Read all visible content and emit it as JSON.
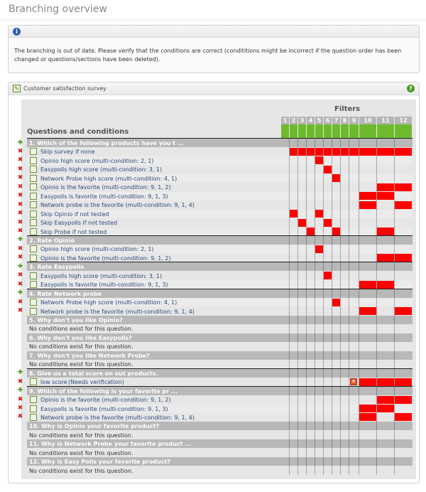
{
  "page": {
    "title": "Branching overview"
  },
  "notice": {
    "icon": "info-icon",
    "text": "The branching is out of date. Please verify that the conditions are correct (condititions might be incorrect if the question order has been changed or questions/sections have been deleted)."
  },
  "survey": {
    "title": "Customer satisfaction survey",
    "icon": "survey-icon",
    "help_icon": "help-icon",
    "filters_label": "Filters",
    "questions_label": "Questions and conditions",
    "filters": [
      "1",
      "2",
      "3",
      "4",
      "5",
      "6",
      "7",
      "8",
      "9",
      "10",
      "11",
      "12"
    ],
    "rows": [
      {
        "type": "q",
        "label": "1. Which of the following products have you t ...",
        "mark": "add"
      },
      {
        "type": "c",
        "label": "Skip survey if none",
        "mark": "del",
        "cells": [
          2,
          3,
          4,
          5,
          6,
          7,
          8,
          9,
          10,
          11,
          12
        ]
      },
      {
        "type": "c",
        "label": "Opinio high score (multi-condition: 2, 1)",
        "mark": "del",
        "cells": [
          5
        ]
      },
      {
        "type": "c",
        "label": "Easypolls high score (multi-condition: 3, 1)",
        "mark": "del",
        "cells": [
          6
        ]
      },
      {
        "type": "c",
        "label": "Network Probe high score (multi-condition: 4, 1)",
        "mark": "del",
        "cells": [
          7
        ]
      },
      {
        "type": "c",
        "label": "Opinio is the favorite (multi-condition: 9, 1, 2)",
        "mark": "del",
        "cells": [
          11,
          12
        ]
      },
      {
        "type": "c",
        "label": "Easypolls is favorite (multi-condition: 9, 1, 3)",
        "mark": "del",
        "cells": [
          10,
          11
        ]
      },
      {
        "type": "c",
        "label": "Network probe is the favorite (multi-condition: 9, 1, 4)",
        "mark": "del",
        "cells": [
          10,
          12
        ]
      },
      {
        "type": "c",
        "label": "Skip Opinio if not tested",
        "mark": "del",
        "cells": [
          2,
          5
        ]
      },
      {
        "type": "c",
        "label": "Skip Easypolls if not tested",
        "mark": "del",
        "cells": [
          3,
          6
        ]
      },
      {
        "type": "c",
        "label": "Skip Probe if not tested",
        "mark": "del",
        "cells": [
          4,
          7,
          11
        ]
      },
      {
        "type": "q",
        "label": "2. Rate Opinio",
        "mark": "add"
      },
      {
        "type": "c",
        "label": "Opinio high score (multi-condition: 2, 1)",
        "mark": "del",
        "cells": [
          5
        ]
      },
      {
        "type": "c",
        "label": "Opinio is the favorite (multi-condition: 9, 1, 2)",
        "mark": "del",
        "cells": [
          11,
          12
        ]
      },
      {
        "type": "q",
        "label": "3. Rate Easypolls",
        "mark": "add"
      },
      {
        "type": "c",
        "label": "Easypolls high score (multi-condition: 3, 1)",
        "mark": "del",
        "cells": [
          6
        ]
      },
      {
        "type": "c",
        "label": "Easypolls is favorite (multi-condition: 9, 1, 3)",
        "mark": "del",
        "cells": [
          10,
          11
        ]
      },
      {
        "type": "q",
        "label": "4. Rate Network probe",
        "mark": "add"
      },
      {
        "type": "c",
        "label": "Network Probe high score (multi-condition: 4, 1)",
        "mark": "del",
        "cells": [
          7
        ]
      },
      {
        "type": "c",
        "label": "Network probe is the favorite (multi-condition: 9, 1, 4)",
        "mark": "del",
        "cells": [
          10,
          12
        ]
      },
      {
        "type": "q",
        "label": "5. Why don't you like Opinio?"
      },
      {
        "type": "n",
        "label": "No conditions exist for this question."
      },
      {
        "type": "q",
        "label": "6. Why don't you like Easypolls?"
      },
      {
        "type": "n",
        "label": "No conditions exist for this question."
      },
      {
        "type": "q",
        "label": "7. Why don't you like Network Probe?"
      },
      {
        "type": "n",
        "label": "No conditions exist for this question."
      },
      {
        "type": "q",
        "label": "8. Give us a total score on out products.",
        "mark": "add"
      },
      {
        "type": "c",
        "label": "low score",
        "warn": "(Needs verification)",
        "mark": "del",
        "cells": [
          10,
          11,
          12
        ],
        "error_cell": 9
      },
      {
        "type": "q",
        "label": "9. Which of the following is your favorite pr ...",
        "mark": "add"
      },
      {
        "type": "c",
        "label": "Opinio is the favorite (multi-condition: 9, 1, 2)",
        "mark": "del",
        "cells": [
          11,
          12
        ]
      },
      {
        "type": "c",
        "label": "Easypolls is favorite (multi-condition: 9, 1, 3)",
        "mark": "del",
        "cells": [
          10,
          11
        ]
      },
      {
        "type": "c",
        "label": "Network probe is the favorite (multi-condition: 9, 1, 4)",
        "mark": "del",
        "cells": [
          10,
          12
        ]
      },
      {
        "type": "q",
        "label": "10. Why is Opinio your favorite product?"
      },
      {
        "type": "n",
        "label": "No conditions exist for this question."
      },
      {
        "type": "q",
        "label": "11. Why is Network Probe your favorite product ..."
      },
      {
        "type": "n",
        "label": "No conditions exist for this question."
      },
      {
        "type": "q",
        "label": "12. Why is Easy Polls your favorite product?"
      },
      {
        "type": "n",
        "label": "No conditions exist for this question."
      }
    ]
  },
  "colors": {
    "filter_header": "#b5b5b5",
    "filter_active": "#6dbb2c",
    "cell_on": "#ff0000",
    "add": "#3f9a1b",
    "delete": "#d32222"
  }
}
